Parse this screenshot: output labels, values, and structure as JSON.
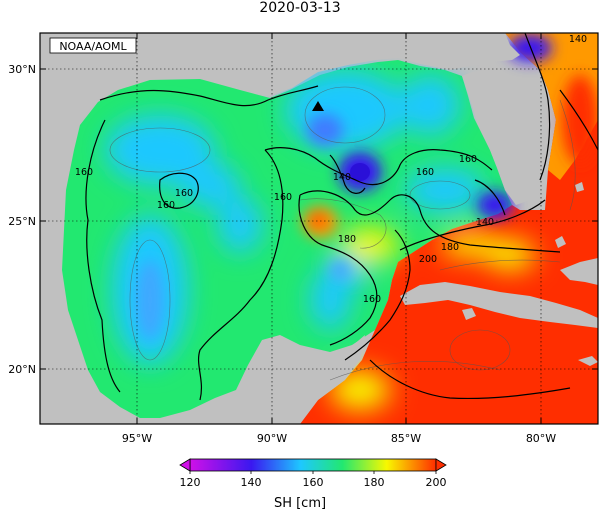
{
  "title": "2020-03-13",
  "credit": "NOAA/AOML",
  "lat_labels": [
    "30°N",
    "25°N",
    "20°N"
  ],
  "lon_labels": [
    "95°W",
    "90°W",
    "85°W",
    "80°W"
  ],
  "contour_labels": [
    "160",
    "160",
    "160",
    "160",
    "160",
    "160",
    "180",
    "180",
    "200",
    "140",
    "140",
    "160",
    "140"
  ],
  "colorbar": {
    "ticks": [
      "120",
      "140",
      "160",
      "180",
      "200"
    ],
    "label": "SH [cm]",
    "range": [
      120,
      200
    ],
    "colors": [
      "#d010e8",
      "#3a18f0",
      "#1ec8ff",
      "#22e870",
      "#f8f800",
      "#ff2e00"
    ]
  },
  "colors": {
    "land": "#c0c0c0",
    "background": "#ffffff"
  },
  "marker": "triangle"
}
